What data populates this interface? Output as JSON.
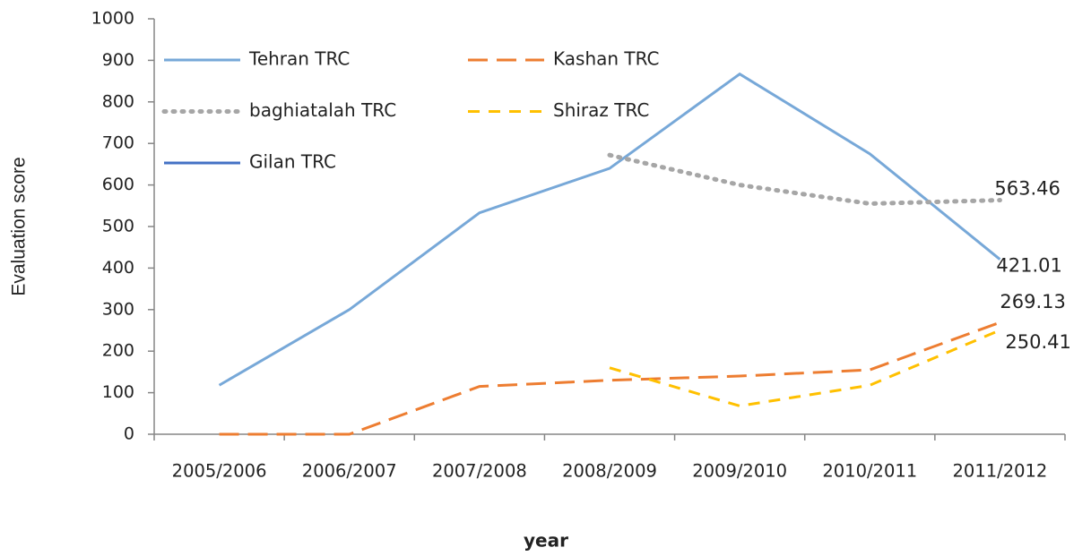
{
  "chart_data": {
    "type": "line",
    "x_label": "year",
    "y_label": "Evaluation score",
    "categories": [
      "2005/2006",
      "2006/2007",
      "2007/2008",
      "2008/2009",
      "2009/2010",
      "2010/2011",
      "2011/2012"
    ],
    "series": [
      {
        "name": "Tehran TRC",
        "color": "#77a8d8",
        "style": "solid",
        "values": [
          118,
          300,
          533,
          640,
          867,
          675,
          421.01
        ]
      },
      {
        "name": "Kashan TRC",
        "color": "#ed7d31",
        "style": "long-dash",
        "values": [
          0,
          0,
          115,
          130,
          140,
          155,
          269.13
        ]
      },
      {
        "name": "baghiatalah TRC",
        "color": "#a6a6a6",
        "style": "dotted",
        "values": [
          null,
          null,
          null,
          672,
          600,
          555,
          563.46
        ]
      },
      {
        "name": "Shiraz TRC",
        "color": "#ffc000",
        "style": "dashed",
        "values": [
          null,
          null,
          null,
          160,
          68,
          118,
          250.41
        ]
      },
      {
        "name": "Gilan TRC",
        "color": "#4472c4",
        "style": "solid",
        "values": [
          null,
          null,
          null,
          null,
          null,
          null,
          null
        ]
      }
    ],
    "data_labels": "last",
    "ylim": [
      0,
      1000
    ],
    "yticks": [
      0,
      100,
      200,
      300,
      400,
      500,
      600,
      700,
      800,
      900,
      1000
    ],
    "grid": false,
    "legend": "top-left"
  }
}
